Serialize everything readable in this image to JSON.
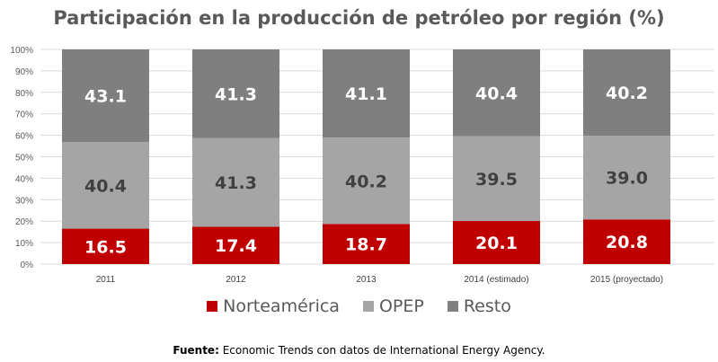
{
  "chart_data": {
    "type": "bar",
    "stacked": true,
    "title": "Participación en la producción de petróleo por región (%)",
    "categories": [
      "2011",
      "2012",
      "2013",
      "2014 (estimado)",
      "2015 (proyectado)"
    ],
    "series": [
      {
        "name": "Norteamérica",
        "color": "#C00000",
        "label_color": "#FFFFFF",
        "values": [
          16.5,
          17.4,
          18.7,
          20.1,
          20.8
        ]
      },
      {
        "name": "OPEP",
        "color": "#A5A5A5",
        "label_color": "#404040",
        "values": [
          40.4,
          41.3,
          40.2,
          39.5,
          39.0
        ]
      },
      {
        "name": "Resto",
        "color": "#7F7F7F",
        "label_color": "#FFFFFF",
        "values": [
          43.1,
          41.3,
          41.1,
          40.4,
          40.2
        ]
      }
    ],
    "yticks": [
      "0%",
      "10%",
      "20%",
      "30%",
      "40%",
      "50%",
      "60%",
      "70%",
      "80%",
      "90%",
      "100%"
    ],
    "ylim": [
      0,
      100
    ],
    "grid": true,
    "legend": "bottom",
    "xlabel": "",
    "ylabel": ""
  },
  "source": {
    "label": "Fuente:",
    "text": " Economic Trends con datos de International Energy Agency."
  }
}
